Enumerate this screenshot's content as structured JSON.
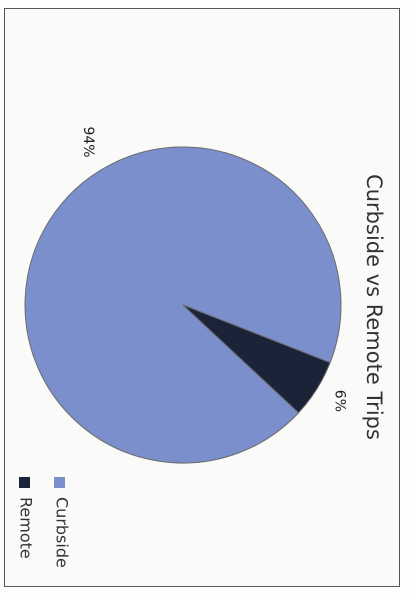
{
  "chart_data": {
    "type": "pie",
    "title": "Curbside vs Remote Trips",
    "categories": [
      "Curbside",
      "Remote"
    ],
    "values": [
      94,
      6
    ],
    "data_labels": [
      "94%",
      "6%"
    ],
    "legend_position": "bottom",
    "colors": {
      "Curbside": "#7b8fcd",
      "Remote": "#1b2338"
    },
    "orientation": "rotated 90 degrees clockwise"
  }
}
